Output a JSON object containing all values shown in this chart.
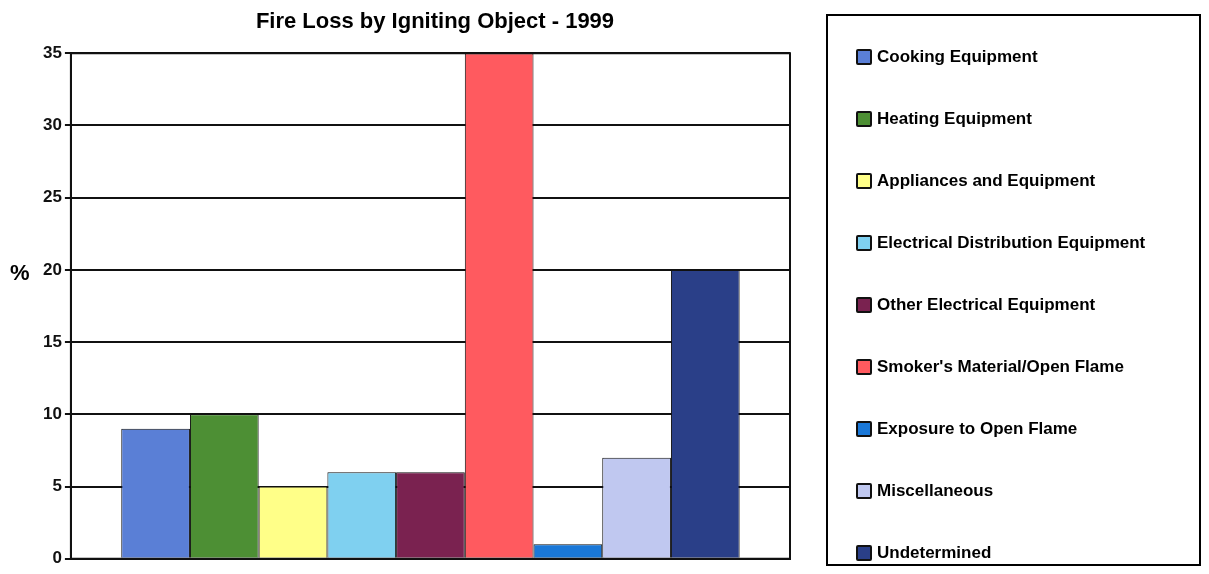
{
  "chart_data": {
    "type": "bar",
    "title": "Fire Loss by Igniting Object - 1999",
    "ylabel": "%",
    "categories": [
      null
    ],
    "series": [
      {
        "name": "Cooking Equipment",
        "color": "#5a7fd6",
        "values": [
          9
        ]
      },
      {
        "name": "Heating Equipment",
        "color": "#4d8f34",
        "values": [
          10
        ]
      },
      {
        "name": "Appliances and Equipment",
        "color": "#ffff88",
        "values": [
          5
        ]
      },
      {
        "name": "Electrical Distribution Equipment",
        "color": "#7fd0f0",
        "values": [
          6
        ]
      },
      {
        "name": "Other Electrical Equipment",
        "color": "#7a2250",
        "values": [
          6
        ]
      },
      {
        "name": "Smoker's Material/Open Flame",
        "color": "#ff5a5f",
        "values": [
          35
        ]
      },
      {
        "name": "Exposure to Open Flame",
        "color": "#1a78d8",
        "values": [
          1
        ]
      },
      {
        "name": "Miscellaneous",
        "color": "#c0c8f0",
        "values": [
          7
        ]
      },
      {
        "name": "Undetermined",
        "color": "#2a3f88",
        "values": [
          20
        ]
      }
    ],
    "ylim": [
      0,
      35
    ],
    "yticks": [
      0,
      5,
      10,
      15,
      20,
      25,
      30,
      35
    ],
    "grid": "y",
    "legend": "right"
  }
}
